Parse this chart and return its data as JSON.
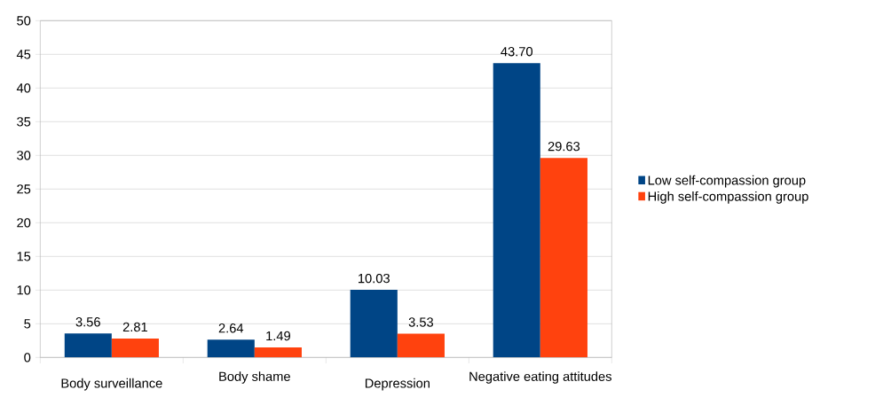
{
  "chart_data": {
    "type": "bar",
    "categories": [
      "Body surveillance",
      "Body shame",
      "Depression",
      "Negative eating attitudes"
    ],
    "series": [
      {
        "name": "Low self-compassion group",
        "color": "#004586",
        "values": [
          3.56,
          2.64,
          10.03,
          43.7
        ],
        "value_labels": [
          "3.56",
          "2.64",
          "10.03",
          "43.70"
        ]
      },
      {
        "name": "High self-compassion group",
        "color": "#ff420e",
        "values": [
          2.81,
          1.49,
          3.53,
          29.63
        ],
        "value_labels": [
          "2.81",
          "1.49",
          "3.53",
          "29.63"
        ]
      }
    ],
    "ylim": [
      0,
      50
    ],
    "yticks": [
      0,
      5,
      10,
      15,
      20,
      25,
      30,
      35,
      40,
      45,
      50
    ],
    "grid": "y",
    "legend": "right"
  }
}
